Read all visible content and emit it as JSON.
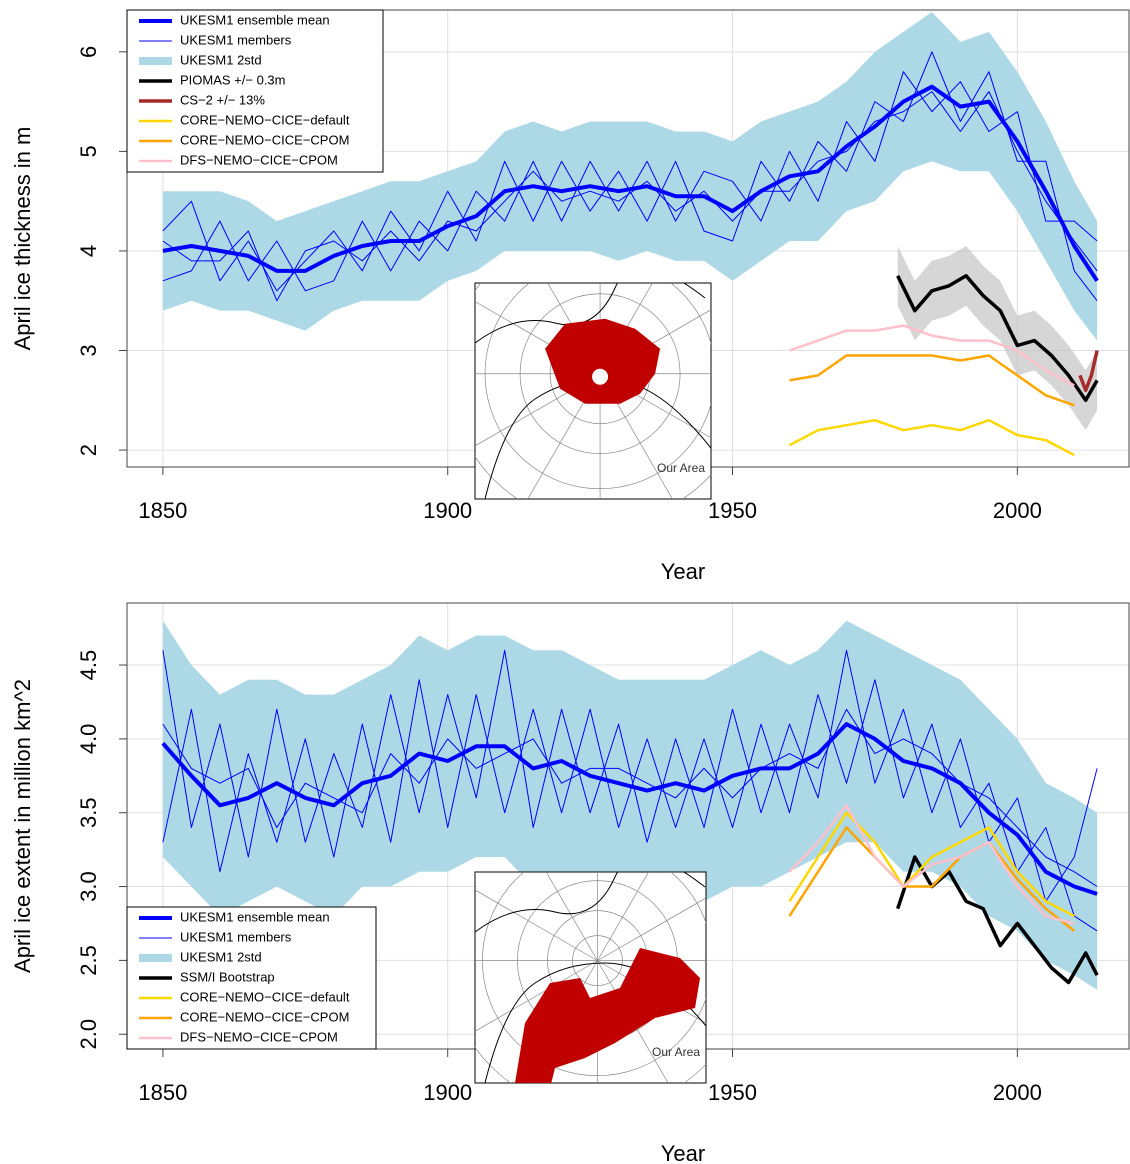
{
  "chart_data": [
    {
      "type": "line",
      "xlabel": "Year",
      "ylabel": "April ice thickness in m",
      "xlim": [
        1843.7,
        2019.6
      ],
      "ylim": [
        1.83,
        6.42
      ],
      "xticks": [
        1850,
        1900,
        1950,
        2000
      ],
      "yticks": [
        2,
        3,
        4,
        5,
        6
      ],
      "grid": true,
      "legend": "top-left",
      "inset_label": "Our Area",
      "x": [
        1850,
        1855,
        1860,
        1865,
        1870,
        1875,
        1880,
        1885,
        1890,
        1895,
        1900,
        1905,
        1910,
        1915,
        1920,
        1925,
        1930,
        1935,
        1940,
        1945,
        1950,
        1955,
        1960,
        1965,
        1970,
        1975,
        1980,
        1985,
        1990,
        1995,
        2000,
        2005,
        2010,
        2014
      ],
      "series": [
        {
          "name": "UKESM1 ensemble mean",
          "color": "#0000ff",
          "style": "mean",
          "values": [
            4.0,
            4.05,
            4.0,
            3.95,
            3.8,
            3.8,
            3.95,
            4.05,
            4.1,
            4.1,
            4.25,
            4.35,
            4.6,
            4.65,
            4.6,
            4.65,
            4.6,
            4.65,
            4.55,
            4.55,
            4.4,
            4.6,
            4.75,
            4.8,
            5.05,
            5.25,
            5.5,
            5.65,
            5.45,
            5.5,
            5.1,
            4.6,
            4.05,
            3.7
          ]
        },
        {
          "name": "UKESM1 members",
          "color": "#0000ff",
          "style": "members",
          "members": [
            [
              4.2,
              4.5,
              3.7,
              4.1,
              3.6,
              3.9,
              4.2,
              3.8,
              4.4,
              4.0,
              4.6,
              4.1,
              4.9,
              4.3,
              4.9,
              4.4,
              4.8,
              4.3,
              4.9,
              4.2,
              4.1,
              4.9,
              4.5,
              5.1,
              4.8,
              5.5,
              5.3,
              6.0,
              5.3,
              5.8,
              4.9,
              4.9,
              3.8,
              3.5
            ],
            [
              3.7,
              3.8,
              4.3,
              3.7,
              4.1,
              3.6,
              3.7,
              4.3,
              3.8,
              4.3,
              4.0,
              4.6,
              4.3,
              4.9,
              4.3,
              4.9,
              4.4,
              4.9,
              4.3,
              4.8,
              4.7,
              4.3,
              5.0,
              4.5,
              5.3,
              4.9,
              5.8,
              5.4,
              5.7,
              5.2,
              5.4,
              4.3,
              4.3,
              4.1
            ],
            [
              4.1,
              3.9,
              3.9,
              4.2,
              3.5,
              4.0,
              4.1,
              3.9,
              4.2,
              3.9,
              4.3,
              4.2,
              4.5,
              4.8,
              4.5,
              4.6,
              4.5,
              4.7,
              4.4,
              4.6,
              4.3,
              4.6,
              4.6,
              4.9,
              5.0,
              5.3,
              5.4,
              5.6,
              5.2,
              5.6,
              5.0,
              4.5,
              4.1,
              3.8
            ]
          ]
        },
        {
          "name": "UKESM1 2std",
          "color": "#add8e6",
          "style": "band",
          "lower": [
            3.4,
            3.5,
            3.4,
            3.4,
            3.3,
            3.2,
            3.4,
            3.5,
            3.5,
            3.5,
            3.7,
            3.8,
            4.0,
            4.0,
            4.0,
            4.0,
            3.9,
            4.0,
            3.9,
            3.9,
            3.7,
            3.9,
            4.1,
            4.1,
            4.4,
            4.5,
            4.8,
            4.9,
            4.8,
            4.8,
            4.4,
            3.9,
            3.4,
            3.1
          ],
          "upper": [
            4.6,
            4.6,
            4.6,
            4.5,
            4.3,
            4.4,
            4.5,
            4.6,
            4.7,
            4.7,
            4.8,
            4.9,
            5.2,
            5.3,
            5.2,
            5.3,
            5.3,
            5.3,
            5.2,
            5.2,
            5.1,
            5.3,
            5.4,
            5.5,
            5.7,
            6.0,
            6.2,
            6.4,
            6.1,
            6.2,
            5.8,
            5.3,
            4.7,
            4.3
          ]
        },
        {
          "name": "PIOMAS +/− 0.3m",
          "color": "#000000",
          "style": "obs",
          "error": 0.3,
          "x": [
            1979,
            1982,
            1985,
            1988,
            1991,
            1994,
            1997,
            2000,
            2003,
            2006,
            2009,
            2012,
            2014
          ],
          "values": [
            3.75,
            3.4,
            3.6,
            3.65,
            3.75,
            3.55,
            3.4,
            3.05,
            3.1,
            2.95,
            2.75,
            2.5,
            2.7
          ]
        },
        {
          "name": "CS−2 +/− 13%",
          "color": "#a52a2a",
          "style": "obs",
          "x": [
            2011,
            2012,
            2013,
            2014
          ],
          "values": [
            2.75,
            2.6,
            2.75,
            3.0
          ]
        },
        {
          "name": "CORE−NEMO−CICE−default",
          "color": "#ffd700",
          "style": "line",
          "x": [
            1960,
            1965,
            1970,
            1975,
            1980,
            1985,
            1990,
            1995,
            2000,
            2005,
            2010
          ],
          "values": [
            2.05,
            2.2,
            2.25,
            2.3,
            2.2,
            2.25,
            2.2,
            2.3,
            2.15,
            2.1,
            1.95
          ]
        },
        {
          "name": "CORE−NEMO−CICE−CPOM",
          "color": "#ffa500",
          "style": "line",
          "x": [
            1960,
            1965,
            1970,
            1975,
            1980,
            1985,
            1990,
            1995,
            2000,
            2005,
            2010
          ],
          "values": [
            2.7,
            2.75,
            2.95,
            2.95,
            2.95,
            2.95,
            2.9,
            2.95,
            2.75,
            2.55,
            2.45
          ]
        },
        {
          "name": "DFS−NEMO−CICE−CPOM",
          "color": "#ffc0cb",
          "style": "line",
          "x": [
            1960,
            1965,
            1970,
            1975,
            1980,
            1985,
            1990,
            1995,
            2000,
            2005,
            2010
          ],
          "values": [
            3.0,
            3.1,
            3.2,
            3.2,
            3.25,
            3.15,
            3.1,
            3.1,
            3.0,
            2.8,
            2.65
          ]
        }
      ]
    },
    {
      "type": "line",
      "xlabel": "Year",
      "ylabel": "April ice extent in million km^2",
      "xlim": [
        1843.7,
        2019.6
      ],
      "ylim": [
        1.9,
        4.92
      ],
      "xticks": [
        1850,
        1900,
        1950,
        2000
      ],
      "yticks": [
        {
          "value": 2,
          "label": "2.0"
        },
        2.5,
        {
          "value": 3,
          "label": "3.0"
        },
        3.5,
        {
          "value": 4,
          "label": "4.0"
        },
        4.5
      ],
      "grid": true,
      "legend": "bottom-left",
      "inset_label": "Our Area",
      "x": [
        1850,
        1855,
        1860,
        1865,
        1870,
        1875,
        1880,
        1885,
        1890,
        1895,
        1900,
        1905,
        1910,
        1915,
        1920,
        1925,
        1930,
        1935,
        1940,
        1945,
        1950,
        1955,
        1960,
        1965,
        1970,
        1975,
        1980,
        1985,
        1990,
        1995,
        2000,
        2005,
        2010,
        2014
      ],
      "series": [
        {
          "name": "UKESM1 ensemble mean",
          "color": "#0000ff",
          "style": "mean",
          "values": [
            3.97,
            3.75,
            3.55,
            3.6,
            3.7,
            3.6,
            3.55,
            3.7,
            3.75,
            3.9,
            3.85,
            3.95,
            3.95,
            3.8,
            3.85,
            3.75,
            3.7,
            3.65,
            3.7,
            3.65,
            3.75,
            3.8,
            3.8,
            3.9,
            4.1,
            4.0,
            3.85,
            3.8,
            3.7,
            3.5,
            3.35,
            3.1,
            3.0,
            2.95
          ]
        },
        {
          "name": "UKESM1 members",
          "color": "#0000ff",
          "style": "members",
          "members": [
            [
              4.6,
              3.4,
              4.1,
              3.2,
              4.2,
              3.3,
              3.9,
              3.4,
              4.3,
              3.5,
              4.3,
              3.6,
              4.6,
              3.4,
              4.2,
              3.5,
              4.1,
              3.3,
              4.0,
              3.4,
              4.2,
              3.5,
              4.1,
              3.6,
              4.6,
              3.7,
              4.2,
              3.5,
              4.0,
              3.3,
              3.6,
              2.9,
              3.2,
              3.8
            ],
            [
              3.3,
              4.2,
              3.1,
              3.9,
              3.3,
              4.0,
              3.2,
              4.1,
              3.3,
              4.4,
              3.4,
              4.3,
              3.5,
              4.2,
              3.5,
              4.2,
              3.4,
              4.0,
              3.4,
              4.0,
              3.4,
              4.1,
              3.5,
              4.3,
              3.7,
              4.4,
              3.6,
              4.1,
              3.4,
              3.7,
              3.1,
              3.4,
              2.8,
              2.7
            ],
            [
              4.1,
              3.8,
              3.7,
              3.8,
              3.4,
              3.7,
              3.6,
              3.5,
              3.9,
              3.7,
              4.0,
              3.8,
              3.9,
              4.0,
              3.7,
              3.8,
              3.8,
              3.7,
              3.6,
              3.8,
              3.6,
              3.8,
              3.9,
              3.8,
              4.2,
              3.9,
              4.0,
              3.9,
              3.7,
              3.6,
              3.4,
              3.2,
              3.1,
              3.0
            ]
          ]
        },
        {
          "name": "UKESM1 2std",
          "color": "#add8e6",
          "style": "band",
          "lower": [
            3.2,
            3.0,
            2.8,
            2.9,
            3.0,
            2.9,
            2.8,
            3.0,
            3.0,
            3.1,
            3.1,
            3.2,
            3.2,
            3.0,
            3.1,
            3.0,
            3.0,
            2.9,
            3.0,
            2.9,
            3.0,
            3.0,
            3.1,
            3.2,
            3.3,
            3.3,
            3.1,
            3.1,
            3.0,
            2.8,
            2.7,
            2.5,
            2.4,
            2.3
          ],
          "upper": [
            4.8,
            4.5,
            4.3,
            4.4,
            4.4,
            4.3,
            4.3,
            4.4,
            4.5,
            4.7,
            4.6,
            4.7,
            4.7,
            4.6,
            4.6,
            4.5,
            4.4,
            4.4,
            4.4,
            4.4,
            4.5,
            4.6,
            4.5,
            4.6,
            4.8,
            4.7,
            4.6,
            4.5,
            4.4,
            4.2,
            4.0,
            3.7,
            3.6,
            3.5
          ]
        },
        {
          "name": "SSM/I Bootstrap",
          "color": "#000000",
          "style": "obs",
          "x": [
            1979,
            1982,
            1985,
            1988,
            1991,
            1994,
            1997,
            2000,
            2003,
            2006,
            2009,
            2012,
            2014
          ],
          "values": [
            2.85,
            3.2,
            3.0,
            3.1,
            2.9,
            2.85,
            2.6,
            2.75,
            2.6,
            2.45,
            2.35,
            2.55,
            2.4
          ]
        },
        {
          "name": "CORE−NEMO−CICE−default",
          "color": "#ffd700",
          "style": "line",
          "x": [
            1960,
            1965,
            1970,
            1975,
            1980,
            1985,
            1990,
            1995,
            2000,
            2005,
            2010
          ],
          "values": [
            2.9,
            3.2,
            3.5,
            3.3,
            3.0,
            3.2,
            3.3,
            3.4,
            3.1,
            2.9,
            2.8
          ]
        },
        {
          "name": "CORE−NEMO−CICE−CPOM",
          "color": "#ffa500",
          "style": "line",
          "x": [
            1960,
            1965,
            1970,
            1975,
            1980,
            1985,
            1990,
            1995,
            2000,
            2005,
            2010
          ],
          "values": [
            2.8,
            3.1,
            3.4,
            3.2,
            3.0,
            3.0,
            3.2,
            3.3,
            3.05,
            2.85,
            2.7
          ]
        },
        {
          "name": "DFS−NEMO−CICE−CPOM",
          "color": "#ffc0cb",
          "style": "line",
          "x": [
            1960,
            1965,
            1970,
            1975,
            1980,
            1985,
            1990,
            1995,
            2000,
            2005,
            2010
          ],
          "values": [
            3.1,
            3.3,
            3.55,
            3.2,
            3.0,
            3.15,
            3.2,
            3.3,
            3.0,
            2.8,
            2.75
          ]
        }
      ]
    }
  ]
}
